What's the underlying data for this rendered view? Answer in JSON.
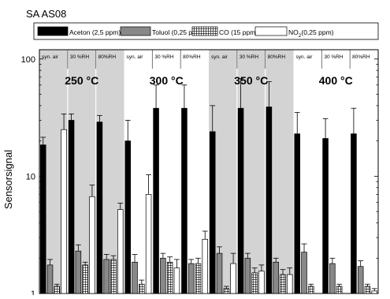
{
  "chart_data": {
    "type": "bar",
    "title": "SA AS08",
    "ylabel": "Sensorsignal",
    "xlabel": "",
    "y_scale": "log",
    "ylim": [
      1,
      120
    ],
    "y_ticks": [
      1,
      10,
      100
    ],
    "y_tick_labels": [
      "1",
      "10",
      "100"
    ],
    "legend_position": "top",
    "legend": [
      {
        "label": "Aceton (2,5 ppm)",
        "fill": "#000000",
        "pattern": "solid"
      },
      {
        "label": "Toluol (0,25 ppm)",
        "fill": "#888888",
        "pattern": "solid"
      },
      {
        "label": "CO (15 ppm)",
        "fill": "#000000",
        "pattern": "grid"
      },
      {
        "label_main": "NO",
        "label_sub": "2",
        "label_rest": "(0,25 ppm)",
        "fill": "#ffffff",
        "pattern": "solid"
      }
    ],
    "series": [
      "Aceton",
      "Toluol",
      "CO",
      "NO2"
    ],
    "temperatures": [
      {
        "label": "250 °C",
        "shaded": true
      },
      {
        "label": "300 °C",
        "shaded": false
      },
      {
        "label": "350 °C",
        "shaded": true
      },
      {
        "label": "400 °C",
        "shaded": false
      }
    ],
    "conditions": [
      "syn. air",
      "30 %RH",
      "80%RH"
    ],
    "groups": [
      {
        "temp": 0,
        "cond": 0,
        "values": [
          18.5,
          1.75,
          1.15,
          25
        ],
        "errors": [
          3,
          0.2,
          0.05,
          9
        ]
      },
      {
        "temp": 0,
        "cond": 1,
        "values": [
          30,
          2.3,
          1.75,
          6.7
        ],
        "errors": [
          4,
          0.3,
          0.1,
          1.7
        ]
      },
      {
        "temp": 0,
        "cond": 2,
        "values": [
          29,
          1.95,
          1.95,
          5.2
        ],
        "errors": [
          4,
          0.2,
          0.15,
          0.7
        ]
      },
      {
        "temp": 1,
        "cond": 0,
        "values": [
          20,
          1.85,
          1.2,
          7
        ],
        "errors": [
          10,
          0.3,
          0.1,
          3.3
        ]
      },
      {
        "temp": 1,
        "cond": 1,
        "values": [
          38,
          2.0,
          1.85,
          1.65
        ],
        "errors": [
          22,
          0.2,
          0.2,
          0.3
        ]
      },
      {
        "temp": 1,
        "cond": 2,
        "values": [
          38,
          1.8,
          1.8,
          2.9
        ],
        "errors": [
          22,
          0.15,
          0.2,
          0.5
        ]
      },
      {
        "temp": 2,
        "cond": 0,
        "values": [
          24,
          2.2,
          1.1,
          1.8
        ],
        "errors": [
          16,
          0.3,
          0.05,
          0.4
        ]
      },
      {
        "temp": 2,
        "cond": 1,
        "values": [
          38,
          2.0,
          1.5,
          1.55
        ],
        "errors": [
          30,
          0.2,
          0.15,
          0.2
        ]
      },
      {
        "temp": 2,
        "cond": 2,
        "values": [
          39,
          1.85,
          1.45,
          1.45
        ],
        "errors": [
          25,
          0.15,
          0.15,
          0.2
        ]
      },
      {
        "temp": 3,
        "cond": 0,
        "values": [
          23,
          2.25,
          1.15,
          1.0
        ],
        "errors": [
          12,
          0.4,
          0.05,
          0
        ]
      },
      {
        "temp": 3,
        "cond": 1,
        "values": [
          21,
          1.8,
          1.15,
          1.0
        ],
        "errors": [
          10,
          0.2,
          0.05,
          0
        ]
      },
      {
        "temp": 3,
        "cond": 2,
        "values": [
          23,
          1.7,
          1.15,
          1.05
        ],
        "errors": [
          15,
          0.2,
          0.05,
          0.05
        ]
      }
    ]
  }
}
